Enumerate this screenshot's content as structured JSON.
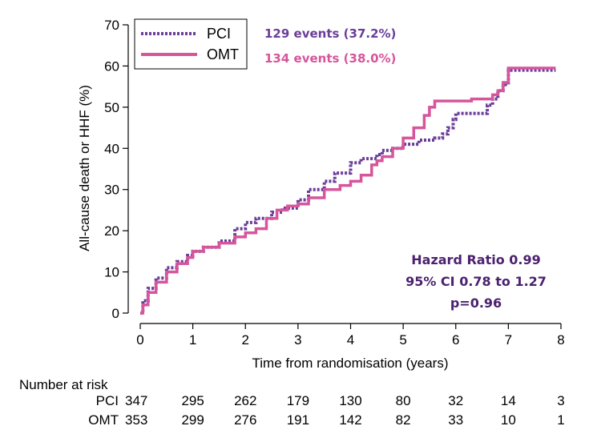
{
  "chart_data": {
    "type": "line",
    "xlabel": "Time from randomisation (years)",
    "ylabel": "All-cause death or HHF (%)",
    "xlim": [
      0,
      8
    ],
    "ylim": [
      0,
      70
    ],
    "x_ticks": [
      "0",
      "1",
      "2",
      "3",
      "4",
      "5",
      "6",
      "7",
      "8"
    ],
    "y_ticks": [
      "0",
      "10",
      "20",
      "30",
      "40",
      "50",
      "60",
      "70"
    ],
    "grid": false,
    "legend_position": "top-left",
    "series": [
      {
        "name": "PCI",
        "color": "#6a3d9a",
        "style": "dotted",
        "events_label": "129 events (37.2%)",
        "x": [
          0,
          0.05,
          0.15,
          0.3,
          0.5,
          0.7,
          0.9,
          1.0,
          1.2,
          1.5,
          1.8,
          2.0,
          2.2,
          2.5,
          2.7,
          3.0,
          3.2,
          3.5,
          3.7,
          4.0,
          4.2,
          4.5,
          4.6,
          4.8,
          5.0,
          5.3,
          5.5,
          5.6,
          5.75,
          5.85,
          5.95,
          6.0,
          6.2,
          6.4,
          6.55,
          6.6,
          6.7,
          6.8,
          6.9,
          7.0,
          7.3,
          7.6,
          7.9
        ],
        "y": [
          0,
          3,
          6,
          8.5,
          11,
          12.5,
          14,
          15,
          16,
          17.5,
          20.5,
          22,
          23,
          24.5,
          25.5,
          27.5,
          30,
          32,
          34,
          36.5,
          37.5,
          38.5,
          39.5,
          40,
          41,
          42,
          42,
          42.5,
          43.5,
          45,
          47,
          48.5,
          48.5,
          48.5,
          48.5,
          50.5,
          52,
          54,
          55.5,
          59,
          59,
          59,
          59
        ]
      },
      {
        "name": "OMT",
        "color": "#d6559b",
        "style": "solid",
        "events_label": "134 events (38.0%)",
        "x": [
          0,
          0.05,
          0.15,
          0.3,
          0.5,
          0.7,
          0.9,
          1.0,
          1.2,
          1.5,
          1.8,
          2.0,
          2.2,
          2.4,
          2.6,
          2.8,
          3.0,
          3.2,
          3.5,
          3.8,
          4.0,
          4.2,
          4.4,
          4.5,
          4.6,
          4.8,
          5.0,
          5.2,
          5.4,
          5.5,
          5.6,
          6.0,
          6.3,
          6.5,
          6.7,
          6.8,
          6.9,
          7.0,
          7.3,
          7.6,
          7.9
        ],
        "y": [
          0,
          2,
          5,
          7.5,
          10,
          12,
          13.5,
          15,
          16,
          17,
          18.5,
          19.5,
          20.5,
          23,
          25,
          26,
          26.5,
          28,
          30,
          31,
          32,
          33.5,
          36,
          37,
          38,
          40,
          42.5,
          45,
          48,
          50,
          51.5,
          51.5,
          52,
          52,
          53,
          54,
          56,
          59.5,
          59.5,
          59.5,
          59.5
        ]
      }
    ],
    "annotations": [
      "Hazard Ratio 0.99",
      "95% CI 0.78 to 1.27",
      "p=0.96"
    ],
    "annotation_color": "#4b2170",
    "risk_table": {
      "title": "Number at risk",
      "rows": [
        {
          "label": "PCI",
          "values": [
            "347",
            "295",
            "262",
            "179",
            "130",
            "80",
            "32",
            "14",
            "3"
          ]
        },
        {
          "label": "OMT",
          "values": [
            "353",
            "299",
            "276",
            "191",
            "142",
            "82",
            "33",
            "10",
            "1"
          ]
        }
      ]
    }
  }
}
